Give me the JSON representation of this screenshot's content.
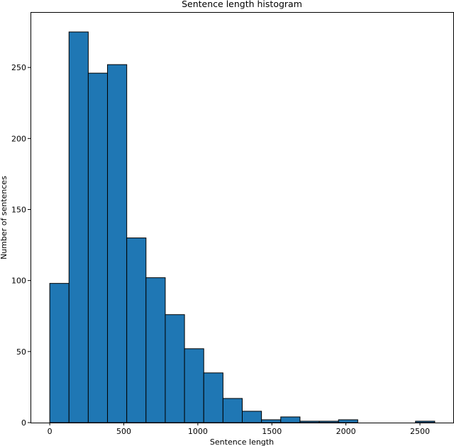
{
  "chart_data": {
    "type": "bar",
    "title": "Sentence length histogram",
    "xlabel": "Sentence length",
    "ylabel": "Number of sentences",
    "bin_edges": [
      0,
      130,
      260,
      390,
      520,
      650,
      780,
      910,
      1040,
      1170,
      1300,
      1430,
      1560,
      1690,
      1820,
      1950,
      2080,
      2210,
      2340,
      2470,
      2600
    ],
    "values": [
      98,
      275,
      246,
      252,
      130,
      102,
      76,
      52,
      35,
      17,
      8,
      2,
      4,
      1,
      1,
      2,
      0,
      0,
      0,
      1
    ],
    "xlim": [
      -130,
      2730
    ],
    "ylim": [
      0,
      289
    ],
    "x_ticks": [
      0,
      500,
      1000,
      1500,
      2000,
      2500
    ],
    "y_ticks": [
      0,
      50,
      100,
      150,
      200,
      250
    ],
    "bar_color": "#1f77b4",
    "edge_color": "#000000",
    "grid": false
  }
}
